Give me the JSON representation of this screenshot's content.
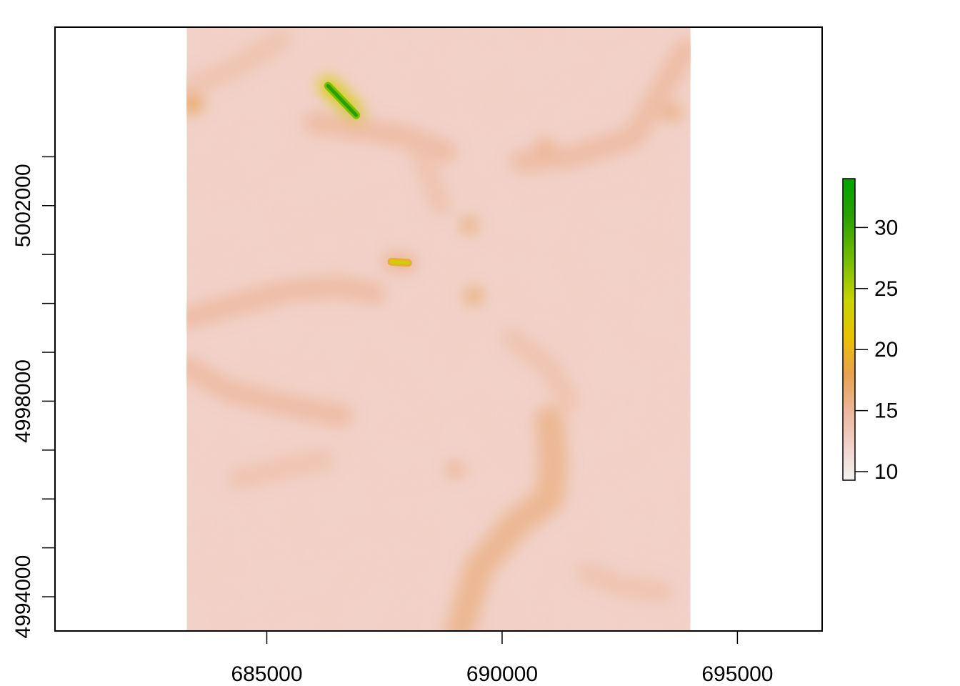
{
  "chart_data": {
    "type": "heatmap",
    "title": "",
    "xlabel": "",
    "ylabel": "",
    "xlim": [
      680500,
      696800
    ],
    "ylim": [
      4993300,
      5005650
    ],
    "raster_extent": {
      "x": [
        683300,
        694000
      ],
      "y": [
        4993300,
        5005650
      ]
    },
    "x_ticks": [
      685000,
      690000,
      695000
    ],
    "x_tick_labels": [
      "685000",
      "690000",
      "695000"
    ],
    "y_ticks": [
      4994000,
      4995000,
      4996000,
      4997000,
      4998000,
      4999000,
      5000000,
      5001000,
      5002000,
      5003000
    ],
    "y_tick_labels": [
      "4994000",
      "",
      "",
      "",
      "4998000",
      "",
      "",
      "",
      "5002000",
      ""
    ],
    "colorbar": {
      "min": 9.3,
      "max": 34,
      "ticks": [
        10,
        15,
        20,
        25,
        30
      ],
      "tick_labels": [
        "10",
        "15",
        "20",
        "25",
        "30"
      ],
      "stops": [
        {
          "value": 9.3,
          "color": "#f2f2f2"
        },
        {
          "value": 12,
          "color": "#f1d3cb"
        },
        {
          "value": 15,
          "color": "#ecb69a"
        },
        {
          "value": 18,
          "color": "#e6a24e"
        },
        {
          "value": 21,
          "color": "#e8c200"
        },
        {
          "value": 24,
          "color": "#c8d400"
        },
        {
          "value": 27,
          "color": "#7cc000"
        },
        {
          "value": 31,
          "color": "#2aa000"
        },
        {
          "value": 34,
          "color": "#00a600"
        }
      ]
    },
    "features": [
      {
        "kind": "ridge",
        "value": 31,
        "points": [
          [
            686300,
            5004450
          ],
          [
            686900,
            5003850
          ]
        ]
      },
      {
        "kind": "ridge",
        "value": 23,
        "points": [
          [
            687650,
            5000850
          ],
          [
            688000,
            5000830
          ]
        ]
      },
      {
        "kind": "blob",
        "value": 18,
        "center": [
          683400,
          5004100
        ],
        "radius": 250
      },
      {
        "kind": "blob",
        "value": 17,
        "center": [
          689300,
          5001600
        ],
        "radius": 180
      },
      {
        "kind": "blob",
        "value": 17,
        "center": [
          689400,
          5000150
        ],
        "radius": 200
      },
      {
        "kind": "blob",
        "value": 16,
        "center": [
          689000,
          4996600
        ],
        "radius": 180
      },
      {
        "kind": "blob",
        "value": 16,
        "center": [
          690900,
          5003200
        ],
        "radius": 200
      },
      {
        "kind": "blob",
        "value": 16,
        "center": [
          693600,
          5003900
        ],
        "radius": 220
      },
      {
        "kind": "valley",
        "value": 16,
        "points": [
          [
            689100,
            4993300
          ],
          [
            689500,
            4994600
          ],
          [
            690300,
            4995500
          ],
          [
            691000,
            4996000
          ],
          [
            691100,
            4996700
          ],
          [
            691000,
            4997600
          ]
        ]
      },
      {
        "kind": "valley",
        "value": 15,
        "points": [
          [
            683300,
            4999700
          ],
          [
            684400,
            5000000
          ],
          [
            685400,
            5000250
          ],
          [
            686500,
            5000350
          ],
          [
            687300,
            5000200
          ]
        ]
      },
      {
        "kind": "valley",
        "value": 15,
        "points": [
          [
            683300,
            4998700
          ],
          [
            684200,
            4998200
          ],
          [
            685500,
            4997900
          ],
          [
            686600,
            4997700
          ]
        ]
      },
      {
        "kind": "valley",
        "value": 15,
        "points": [
          [
            690400,
            5002900
          ],
          [
            691500,
            5003000
          ],
          [
            692800,
            5003400
          ],
          [
            693900,
            5005200
          ]
        ]
      },
      {
        "kind": "valley",
        "value": 15,
        "points": [
          [
            686000,
            5003700
          ],
          [
            687100,
            5003550
          ],
          [
            688000,
            5003400
          ],
          [
            688800,
            5003100
          ]
        ]
      },
      {
        "kind": "valley",
        "value": 14,
        "points": [
          [
            690200,
            4999300
          ],
          [
            691000,
            4998700
          ],
          [
            691400,
            4998000
          ]
        ]
      },
      {
        "kind": "valley",
        "value": 14,
        "points": [
          [
            683300,
            5004400
          ],
          [
            684300,
            5004800
          ],
          [
            685300,
            5005400
          ]
        ]
      },
      {
        "kind": "valley",
        "value": 14,
        "points": [
          [
            684400,
            4996400
          ],
          [
            685200,
            4996600
          ],
          [
            686200,
            4996800
          ]
        ]
      },
      {
        "kind": "valley",
        "value": 14,
        "points": [
          [
            691800,
            4994500
          ],
          [
            692600,
            4994200
          ],
          [
            693400,
            4994100
          ]
        ]
      },
      {
        "kind": "valley",
        "value": 14,
        "points": [
          [
            688200,
            5003200
          ],
          [
            688500,
            5002500
          ],
          [
            688700,
            5002000
          ]
        ]
      }
    ]
  }
}
